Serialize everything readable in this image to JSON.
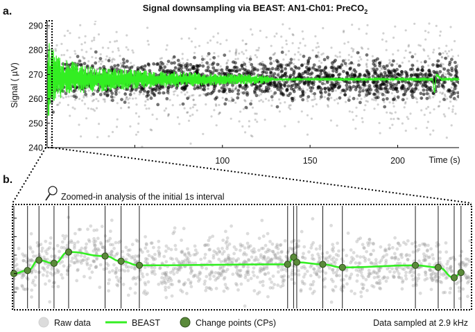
{
  "panel_a_label": "a.",
  "panel_b_label": "b.",
  "colors": {
    "beast": "#33ee22",
    "cp_fill": "#5a8a3a",
    "cp_stroke": "#2d4d1a",
    "raw": "#000000",
    "raw_b": "#9a9a9a"
  },
  "chart_data": [
    {
      "type": "line",
      "title_main": "Signal downsampling via BEAST: AN1-Ch01: PreCO",
      "title_sub": "2",
      "ylabel": "Signal ( µV)",
      "xlabel": "Time (s)",
      "xlim": [
        0,
        235
      ],
      "ylim": [
        240,
        292
      ],
      "yticks": [
        240,
        250,
        260,
        270,
        280,
        290
      ],
      "xticks": [
        50,
        100,
        150,
        200
      ],
      "xtick_labels": [
        "",
        "100",
        "150",
        "200"
      ],
      "series": [
        {
          "kind": "raw",
          "band_center": 268,
          "dense_half_width": 7,
          "sparse_half_width": 20
        },
        {
          "kind": "beast",
          "x": [
            0,
            2,
            5,
            8,
            12,
            20,
            30,
            40,
            50,
            60,
            70,
            80,
            90,
            100,
            110,
            120,
            125,
            130,
            140,
            160,
            180,
            200,
            215,
            220,
            221,
            222,
            225,
            235
          ],
          "y_center": [
            268,
            268,
            269,
            268,
            269,
            268,
            268,
            268,
            268,
            268,
            268,
            268,
            268,
            268,
            268,
            268,
            268,
            268,
            268,
            268,
            268,
            268,
            268,
            268,
            262,
            270,
            268,
            268
          ],
          "y_amplitude": [
            18,
            14,
            10,
            8,
            7,
            6,
            5,
            4.5,
            4,
            3.5,
            3.2,
            3,
            2.8,
            2.5,
            2.2,
            2,
            1.6,
            0.6,
            0.4,
            0.3,
            0.3,
            0.3,
            0.3,
            0.3,
            0.3,
            0.3,
            0.3,
            0.3
          ]
        }
      ]
    },
    {
      "type": "line",
      "title": "Zoomed-in analysis of the initial 1s interval",
      "xlim": [
        0,
        1
      ],
      "ylim": [
        0,
        1
      ],
      "series": [
        {
          "name": "BEAST",
          "x": [
            0.0,
            0.03,
            0.055,
            0.088,
            0.12,
            0.2,
            0.235,
            0.275,
            0.6,
            0.613,
            0.62,
            0.677,
            0.72,
            0.88,
            0.93,
            0.965,
            0.98
          ],
          "y": [
            0.66,
            0.63,
            0.53,
            0.56,
            0.45,
            0.49,
            0.54,
            0.58,
            0.57,
            0.5,
            0.55,
            0.57,
            0.6,
            0.58,
            0.6,
            0.7,
            0.65
          ]
        },
        {
          "name": "Change points (CPs)",
          "x": [
            0.0,
            0.03,
            0.055,
            0.088,
            0.12,
            0.2,
            0.235,
            0.275,
            0.6,
            0.613,
            0.62,
            0.677,
            0.72,
            0.88,
            0.93,
            0.965,
            0.98
          ],
          "y": [
            0.66,
            0.63,
            0.53,
            0.56,
            0.45,
            0.49,
            0.54,
            0.58,
            0.57,
            0.5,
            0.55,
            0.57,
            0.6,
            0.58,
            0.6,
            0.7,
            0.65
          ]
        }
      ]
    }
  ],
  "legend": {
    "raw_label": "Raw data",
    "beast_label": "BEAST",
    "cp_label": "Change points (CPs)",
    "sampling_note": "Data sampled at 2.9 kHz"
  }
}
